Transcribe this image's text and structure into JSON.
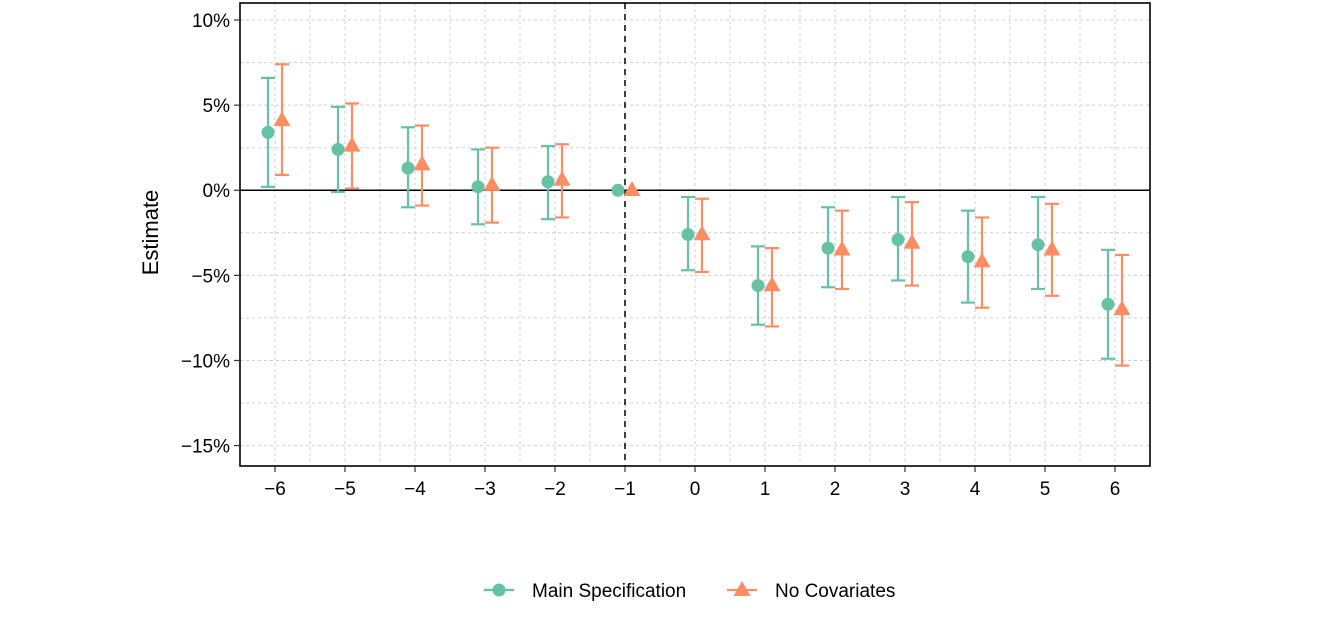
{
  "chart_data": {
    "type": "scatter",
    "subtype": "event-study coefficient plot with error bars",
    "title": "",
    "xlabel": "",
    "ylabel": "Estimate",
    "x": [
      -6,
      -5,
      -4,
      -3,
      -2,
      -1,
      0,
      1,
      2,
      3,
      4,
      5,
      6
    ],
    "x_tick_labels": [
      "−6",
      "−5",
      "−4",
      "−3",
      "−2",
      "−1",
      "0",
      "1",
      "2",
      "3",
      "4",
      "5",
      "6"
    ],
    "y_ticks": [
      10,
      5,
      0,
      -5,
      -10,
      -15
    ],
    "y_tick_labels": [
      "10%",
      "5%",
      "0%",
      "−5%",
      "−10%",
      "−15%"
    ],
    "ylim": [
      -16.2,
      11.0
    ],
    "xlim": [
      -6.5,
      6.5
    ],
    "y_unit": "percent",
    "grid": true,
    "reference_lines": {
      "horizontal_at_y": 0,
      "vertical_dashed_at_x": -1
    },
    "legend": {
      "position": "bottom",
      "entries": [
        "Main Specification",
        "No Covariates"
      ]
    },
    "series": [
      {
        "name": "Main Specification",
        "marker": "circle",
        "color": "#66C2A5",
        "values": [
          3.4,
          2.4,
          1.3,
          0.2,
          0.5,
          0.0,
          -2.6,
          -5.6,
          -3.4,
          -2.9,
          -3.9,
          -3.2,
          -6.7
        ],
        "lower": [
          0.2,
          -0.1,
          -1.0,
          -2.0,
          -1.7,
          0.0,
          -4.7,
          -7.9,
          -5.7,
          -5.3,
          -6.6,
          -5.8,
          -9.9
        ],
        "upper": [
          6.6,
          4.9,
          3.7,
          2.4,
          2.6,
          0.0,
          -0.4,
          -3.3,
          -1.0,
          -0.4,
          -1.2,
          -0.4,
          -3.5
        ]
      },
      {
        "name": "No Covariates",
        "marker": "triangle",
        "color": "#FC8D62",
        "values": [
          4.1,
          2.6,
          1.5,
          0.3,
          0.6,
          0.0,
          -2.6,
          -5.6,
          -3.5,
          -3.1,
          -4.2,
          -3.5,
          -7.0
        ],
        "lower": [
          0.9,
          0.1,
          -0.9,
          -1.9,
          -1.6,
          0.0,
          -4.8,
          -8.0,
          -5.8,
          -5.6,
          -6.9,
          -6.2,
          -10.3
        ],
        "upper": [
          7.4,
          5.1,
          3.8,
          2.5,
          2.7,
          0.0,
          -0.5,
          -3.4,
          -1.2,
          -0.7,
          -1.6,
          -0.8,
          -3.8
        ]
      }
    ]
  }
}
